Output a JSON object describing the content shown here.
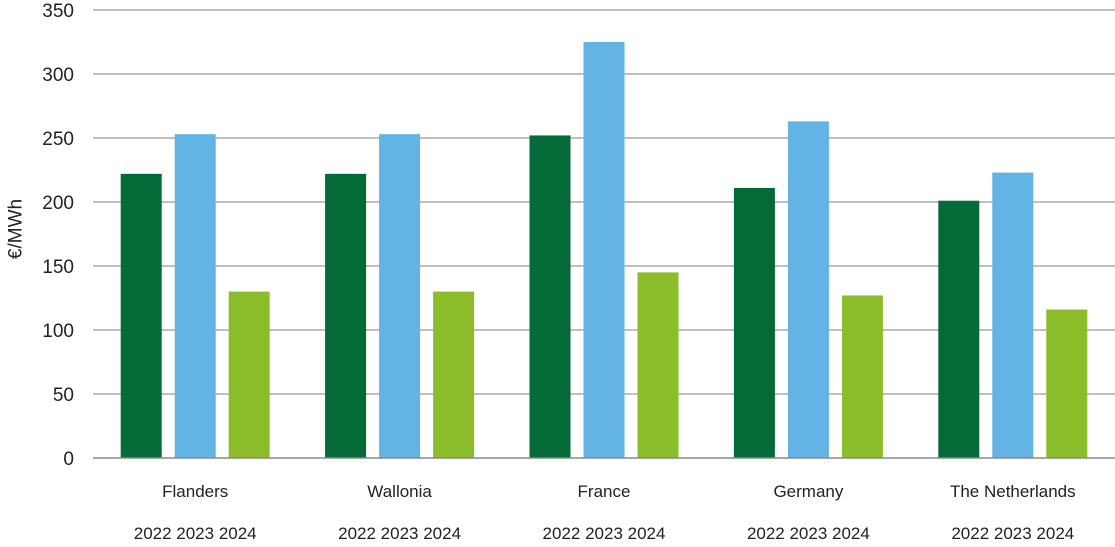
{
  "chart_data": {
    "type": "bar",
    "ylabel": "€/MWh",
    "ylim": [
      0,
      350
    ],
    "yticks": [
      "0",
      "50",
      "100",
      "150",
      "200",
      "250",
      "300",
      "350"
    ],
    "grid": true,
    "categories": [
      "Flanders",
      "Wallonia",
      "France",
      "Germany",
      "The Netherlands"
    ],
    "year_labels": [
      "2022",
      "2023",
      "2024"
    ],
    "series": [
      {
        "name": "2022",
        "color": "#046a38",
        "values": [
          222,
          222,
          252,
          211,
          201
        ]
      },
      {
        "name": "2023",
        "color": "#63b4e4",
        "values": [
          253,
          253,
          325,
          263,
          223
        ]
      },
      {
        "name": "2024",
        "color": "#8bbd2a",
        "values": [
          130,
          130,
          145,
          127,
          116
        ]
      }
    ]
  }
}
